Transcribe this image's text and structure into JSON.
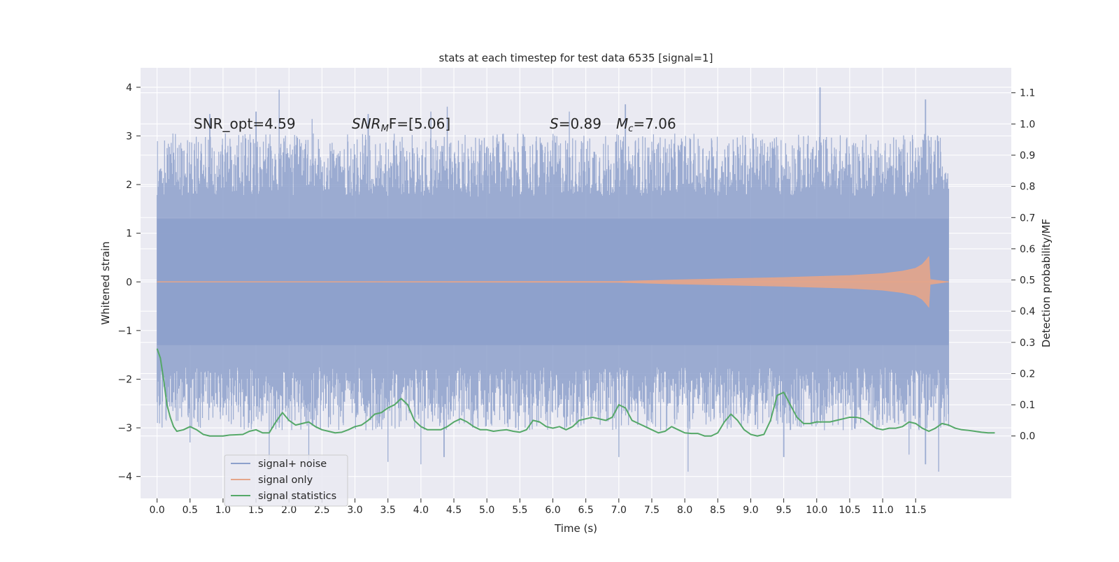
{
  "chart_data": {
    "type": "line",
    "title": "stats at each timestep for test data 6535 [signal=1]",
    "xlabel": "Time (s)",
    "ylabel_left": "Whitened strain",
    "ylabel_right": "Detection probability/MF",
    "xlim": [
      -0.25,
      12.95
    ],
    "ylim_left": [
      -4.45,
      4.4
    ],
    "ylim_right": [
      -0.2,
      1.18
    ],
    "x_ticks": [
      0.0,
      0.5,
      1.0,
      1.5,
      2.0,
      2.5,
      3.0,
      3.5,
      4.0,
      4.5,
      5.0,
      5.5,
      6.0,
      6.5,
      7.0,
      7.5,
      8.0,
      8.5,
      9.0,
      9.5,
      10.0,
      10.5,
      11.0,
      11.5
    ],
    "x_tick_labels": [
      "0.0",
      "0.5",
      "1.0",
      "1.5",
      "2.0",
      "2.5",
      "3.0",
      "3.5",
      "4.0",
      "4.5",
      "5.0",
      "5.5",
      "6.0",
      "6.5",
      "7.0",
      "7.5",
      "8.0",
      "8.5",
      "9.0",
      "9.5",
      "10.0",
      "10.5",
      "11.0",
      "11.5"
    ],
    "y_left_ticks": [
      4,
      3,
      2,
      1,
      0,
      -1,
      -2,
      -3,
      -4
    ],
    "y_left_tick_labels": [
      "4",
      "3",
      "2",
      "1",
      "0",
      "−1",
      "−2",
      "−3",
      "−4"
    ],
    "y_right_ticks": [
      1.1,
      1.0,
      0.9,
      0.8,
      0.7,
      0.6,
      0.5,
      0.4,
      0.3,
      0.2,
      0.1,
      0.0
    ],
    "y_right_tick_labels": [
      "1.1",
      "1.0",
      "0.9",
      "0.8",
      "0.7",
      "0.6",
      "0.5",
      "0.4",
      "0.3",
      "0.2",
      "0.1",
      "0.0"
    ],
    "grid": true,
    "legend_position": "lower-left",
    "annotations": {
      "snr_opt": "SNR_opt=4.59",
      "snr_mf_base": "SNR",
      "snr_mf_sub": "M",
      "snr_mf_rest": "F=[5.06]",
      "s_name": "S",
      "s_value": "=0.89",
      "mc_base": "M",
      "mc_sub": "c",
      "mc_value": "=7.06"
    },
    "series": [
      {
        "name": "signal+ noise",
        "color": "#8da0cb",
        "axis": "left",
        "x_range": [
          0.0,
          12.0
        ],
        "band_core": [
          -1.3,
          1.3
        ],
        "spike_max_y": [
          [
            0.8,
            3.45
          ],
          [
            1.5,
            3.5
          ],
          [
            1.85,
            3.95
          ],
          [
            2.35,
            3.35
          ],
          [
            3.2,
            3.45
          ],
          [
            4.15,
            3.5
          ],
          [
            4.4,
            3.6
          ],
          [
            6.25,
            3.5
          ],
          [
            7.1,
            3.65
          ],
          [
            10.05,
            4.0
          ],
          [
            11.65,
            3.75
          ]
        ],
        "spike_min_y": [
          [
            0.5,
            -3.3
          ],
          [
            1.7,
            -3.7
          ],
          [
            2.3,
            -4.05
          ],
          [
            3.5,
            -3.7
          ],
          [
            4.0,
            -3.75
          ],
          [
            4.35,
            -3.6
          ],
          [
            7.0,
            -3.6
          ],
          [
            8.05,
            -3.9
          ],
          [
            9.5,
            -3.6
          ],
          [
            11.4,
            -3.55
          ],
          [
            11.65,
            -3.75
          ],
          [
            11.85,
            -3.9
          ]
        ]
      },
      {
        "name": "signal only",
        "color": "#e5a58a",
        "axis": "left",
        "x_range": [
          0.0,
          12.0
        ],
        "envelope": [
          [
            0.0,
            0.0
          ],
          [
            7.0,
            0.01
          ],
          [
            7.8,
            0.04
          ],
          [
            8.5,
            0.06
          ],
          [
            9.5,
            0.09
          ],
          [
            10.5,
            0.13
          ],
          [
            11.0,
            0.17
          ],
          [
            11.3,
            0.22
          ],
          [
            11.5,
            0.28
          ],
          [
            11.6,
            0.36
          ],
          [
            11.66,
            0.45
          ],
          [
            11.7,
            0.52
          ],
          [
            11.72,
            0.05
          ],
          [
            12.0,
            0.0
          ]
        ]
      },
      {
        "name": "signal statistics",
        "color": "#55a868",
        "axis": "right",
        "points": [
          [
            0.0,
            0.28
          ],
          [
            0.05,
            0.25
          ],
          [
            0.1,
            0.18
          ],
          [
            0.15,
            0.1
          ],
          [
            0.2,
            0.06
          ],
          [
            0.25,
            0.03
          ],
          [
            0.3,
            0.015
          ],
          [
            0.4,
            0.02
          ],
          [
            0.5,
            0.03
          ],
          [
            0.6,
            0.02
          ],
          [
            0.7,
            0.005
          ],
          [
            0.8,
            0.0
          ],
          [
            1.0,
            0.0
          ],
          [
            1.1,
            0.003
          ],
          [
            1.2,
            0.004
          ],
          [
            1.3,
            0.005
          ],
          [
            1.4,
            0.015
          ],
          [
            1.5,
            0.02
          ],
          [
            1.6,
            0.01
          ],
          [
            1.7,
            0.01
          ],
          [
            1.8,
            0.045
          ],
          [
            1.9,
            0.075
          ],
          [
            2.0,
            0.05
          ],
          [
            2.1,
            0.035
          ],
          [
            2.2,
            0.04
          ],
          [
            2.3,
            0.045
          ],
          [
            2.4,
            0.03
          ],
          [
            2.5,
            0.02
          ],
          [
            2.6,
            0.015
          ],
          [
            2.7,
            0.01
          ],
          [
            2.8,
            0.012
          ],
          [
            2.9,
            0.02
          ],
          [
            3.0,
            0.03
          ],
          [
            3.1,
            0.035
          ],
          [
            3.2,
            0.05
          ],
          [
            3.3,
            0.07
          ],
          [
            3.4,
            0.075
          ],
          [
            3.5,
            0.09
          ],
          [
            3.6,
            0.1
          ],
          [
            3.7,
            0.12
          ],
          [
            3.8,
            0.1
          ],
          [
            3.9,
            0.05
          ],
          [
            4.0,
            0.03
          ],
          [
            4.1,
            0.02
          ],
          [
            4.2,
            0.02
          ],
          [
            4.3,
            0.02
          ],
          [
            4.4,
            0.03
          ],
          [
            4.5,
            0.045
          ],
          [
            4.6,
            0.055
          ],
          [
            4.7,
            0.045
          ],
          [
            4.8,
            0.03
          ],
          [
            4.9,
            0.02
          ],
          [
            5.0,
            0.02
          ],
          [
            5.1,
            0.015
          ],
          [
            5.2,
            0.018
          ],
          [
            5.3,
            0.02
          ],
          [
            5.4,
            0.015
          ],
          [
            5.5,
            0.012
          ],
          [
            5.6,
            0.02
          ],
          [
            5.7,
            0.05
          ],
          [
            5.8,
            0.045
          ],
          [
            5.9,
            0.03
          ],
          [
            6.0,
            0.025
          ],
          [
            6.1,
            0.03
          ],
          [
            6.2,
            0.02
          ],
          [
            6.3,
            0.03
          ],
          [
            6.4,
            0.05
          ],
          [
            6.5,
            0.055
          ],
          [
            6.6,
            0.06
          ],
          [
            6.7,
            0.055
          ],
          [
            6.8,
            0.05
          ],
          [
            6.9,
            0.06
          ],
          [
            7.0,
            0.1
          ],
          [
            7.1,
            0.09
          ],
          [
            7.2,
            0.05
          ],
          [
            7.3,
            0.04
          ],
          [
            7.4,
            0.03
          ],
          [
            7.5,
            0.02
          ],
          [
            7.6,
            0.01
          ],
          [
            7.7,
            0.015
          ],
          [
            7.8,
            0.03
          ],
          [
            7.9,
            0.02
          ],
          [
            8.0,
            0.01
          ],
          [
            8.1,
            0.008
          ],
          [
            8.2,
            0.008
          ],
          [
            8.3,
            0.0
          ],
          [
            8.4,
            0.0
          ],
          [
            8.5,
            0.01
          ],
          [
            8.6,
            0.045
          ],
          [
            8.7,
            0.07
          ],
          [
            8.8,
            0.05
          ],
          [
            8.9,
            0.02
          ],
          [
            9.0,
            0.005
          ],
          [
            9.1,
            0.0
          ],
          [
            9.2,
            0.005
          ],
          [
            9.3,
            0.05
          ],
          [
            9.4,
            0.13
          ],
          [
            9.5,
            0.14
          ],
          [
            9.6,
            0.1
          ],
          [
            9.7,
            0.06
          ],
          [
            9.8,
            0.04
          ],
          [
            9.9,
            0.04
          ],
          [
            10.0,
            0.045
          ],
          [
            10.1,
            0.045
          ],
          [
            10.2,
            0.045
          ],
          [
            10.3,
            0.05
          ],
          [
            10.4,
            0.055
          ],
          [
            10.5,
            0.06
          ],
          [
            10.6,
            0.06
          ],
          [
            10.7,
            0.055
          ],
          [
            10.8,
            0.04
          ],
          [
            10.9,
            0.025
          ],
          [
            11.0,
            0.02
          ],
          [
            11.1,
            0.025
          ],
          [
            11.2,
            0.025
          ],
          [
            11.3,
            0.03
          ],
          [
            11.4,
            0.045
          ],
          [
            11.5,
            0.04
          ],
          [
            11.6,
            0.025
          ],
          [
            11.7,
            0.015
          ],
          [
            11.8,
            0.025
          ],
          [
            11.9,
            0.04
          ],
          [
            12.0,
            0.035
          ],
          [
            12.1,
            0.025
          ],
          [
            12.2,
            0.02
          ],
          [
            12.3,
            0.018
          ],
          [
            12.4,
            0.015
          ],
          [
            12.5,
            0.012
          ],
          [
            12.6,
            0.01
          ],
          [
            12.7,
            0.01
          ]
        ]
      }
    ]
  }
}
